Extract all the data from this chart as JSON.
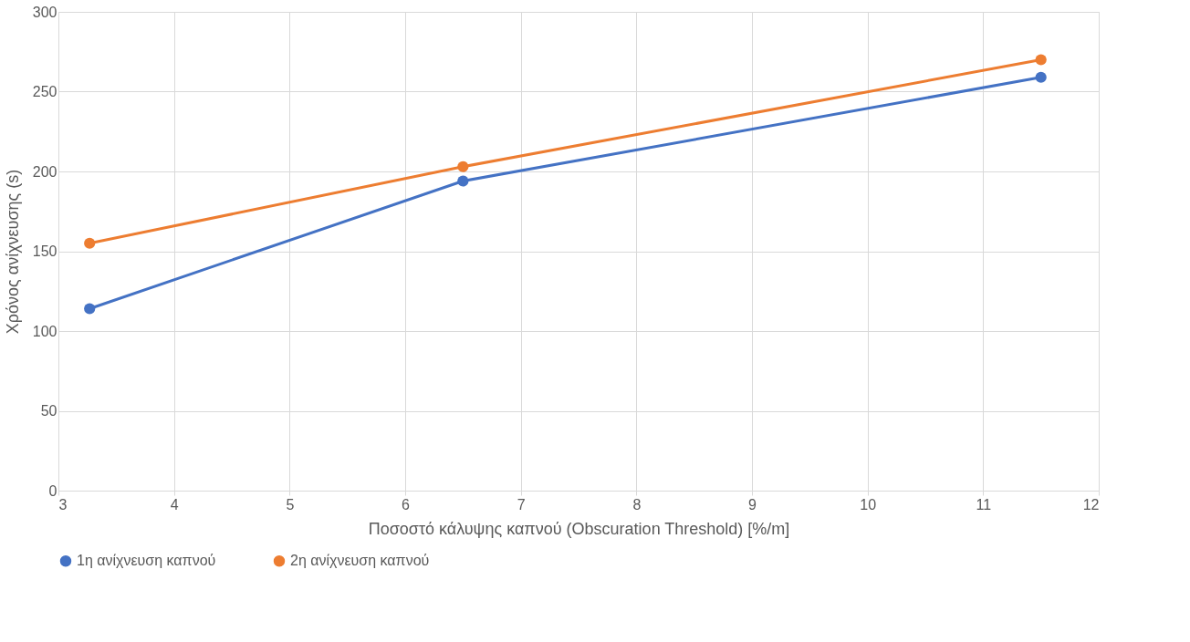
{
  "chart_data": {
    "type": "line",
    "xlabel": "Ποσοστό κάλυψης καπνού (Obscuration Threshold) [%/m]",
    "ylabel": "Χρόνος ανίχνευσης (s)",
    "x": [
      3.27,
      6.5,
      11.5
    ],
    "series": [
      {
        "name": "1η ανίχνευση καπνού",
        "color": "#4472c4",
        "values": [
          114,
          194,
          259
        ]
      },
      {
        "name": "2η ανίχνευση καπνού",
        "color": "#ed7d31",
        "values": [
          155,
          203,
          270
        ]
      }
    ],
    "xlim": [
      3,
      12
    ],
    "xticks": [
      3,
      4,
      5,
      6,
      7,
      8,
      9,
      10,
      11,
      12
    ],
    "ylim": [
      0,
      300
    ],
    "yticks": [
      0,
      50,
      100,
      150,
      200,
      250,
      300
    ],
    "grid": true,
    "legend": "bottom",
    "marker": "circle",
    "line_style": "solid"
  }
}
